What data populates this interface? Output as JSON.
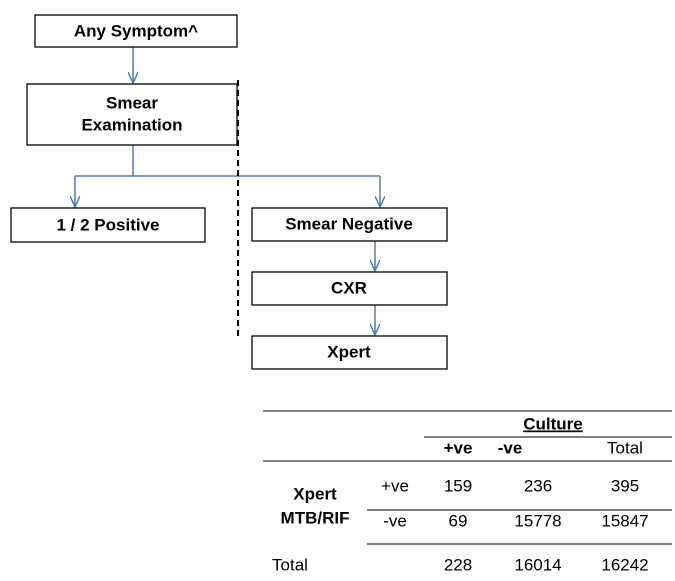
{
  "nodes": [
    {
      "label": [
        "Any Symptom^"
      ]
    },
    {
      "label": [
        "Smear",
        "Examination"
      ]
    },
    {
      "label": [
        "1 / 2 Positive"
      ]
    },
    {
      "label": [
        "Smear Negative"
      ]
    },
    {
      "label": [
        "CXR"
      ]
    },
    {
      "label": [
        "Xpert"
      ]
    }
  ],
  "table": {
    "group_header": "Culture",
    "columns": [
      "+ve",
      "-ve",
      "Total"
    ],
    "row_group_label": [
      "Xpert",
      "MTB/RIF"
    ],
    "rows": [
      {
        "label": "+ve",
        "values": [
          159,
          236,
          395
        ]
      },
      {
        "label": "-ve",
        "values": [
          69,
          15778,
          15847
        ]
      },
      {
        "label": "Total",
        "values": [
          228,
          16014,
          16242
        ]
      }
    ]
  }
}
